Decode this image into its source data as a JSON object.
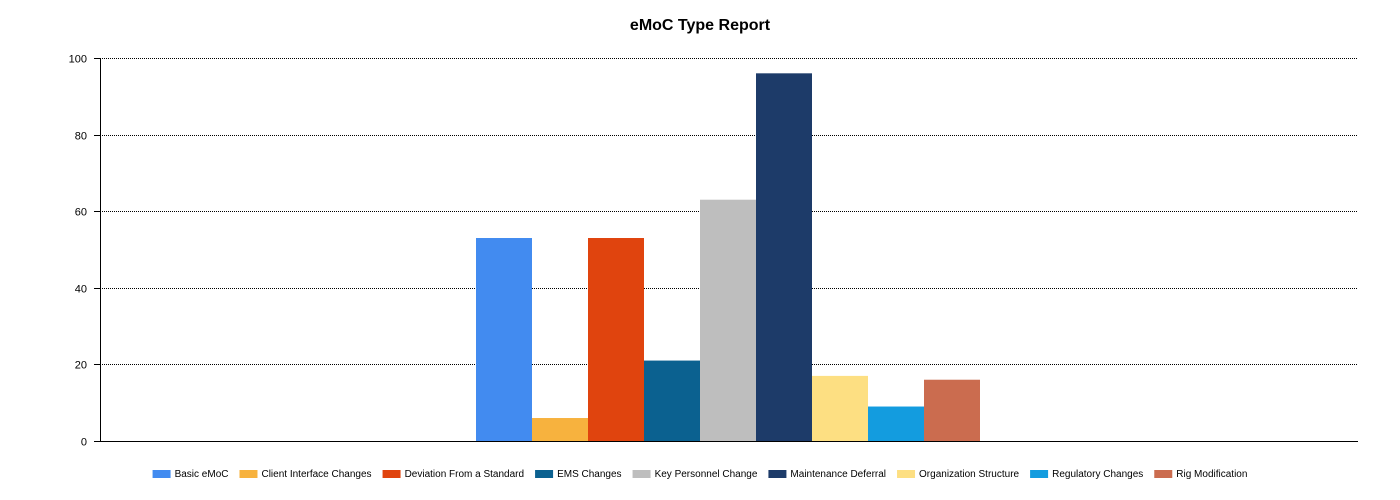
{
  "chart_data": {
    "type": "bar",
    "title": "eMoC Type Report",
    "xlabel": "",
    "ylabel": "",
    "ylim": [
      0,
      100
    ],
    "yticks": [
      0,
      20,
      40,
      60,
      80,
      100
    ],
    "grid": true,
    "legend_position": "bottom",
    "series": [
      {
        "name": "Basic eMoC",
        "value": 53,
        "color": "#428BF0"
      },
      {
        "name": "Client Interface Changes",
        "value": 6,
        "color": "#F7B23E"
      },
      {
        "name": "Deviation From a Standard",
        "value": 53,
        "color": "#E0440E"
      },
      {
        "name": "EMS Changes",
        "value": 21,
        "color": "#0B6190"
      },
      {
        "name": "Key Personnel Change",
        "value": 63,
        "color": "#BEBEBE"
      },
      {
        "name": "Maintenance Deferral",
        "value": 96,
        "color": "#1D3B69"
      },
      {
        "name": "Organization Structure",
        "value": 17,
        "color": "#FDDF82"
      },
      {
        "name": "Regulatory Changes",
        "value": 9,
        "color": "#139CDF"
      },
      {
        "name": "Rig Modification",
        "value": 16,
        "color": "#CB6C4F"
      }
    ]
  }
}
